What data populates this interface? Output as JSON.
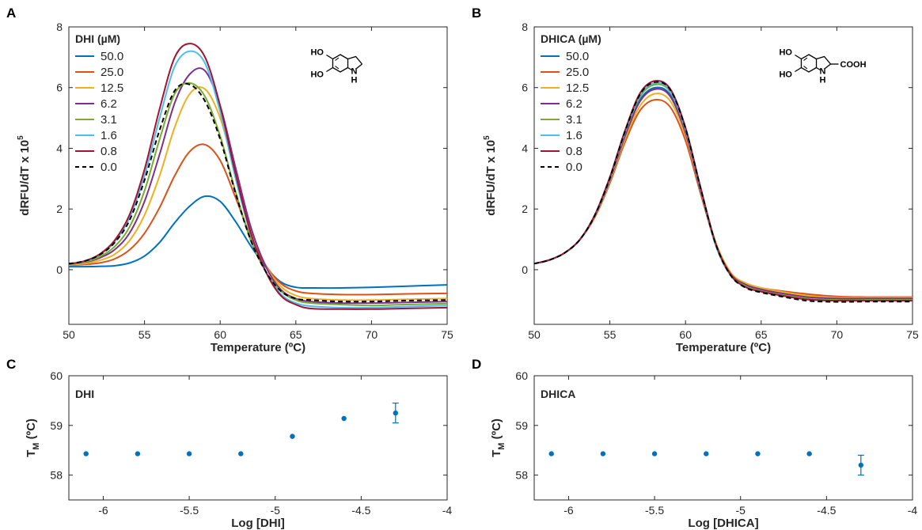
{
  "chart_data": [
    {
      "id": "A",
      "type": "line",
      "panel_label": "A",
      "xlabel": "Temperature (ºC)",
      "ylabel_main": "dRFU/dT x 10",
      "ylabel_sup": "5",
      "xlim": [
        50,
        75
      ],
      "ylim": [
        -1.8,
        8
      ],
      "xticks": [
        50,
        55,
        60,
        65,
        70,
        75
      ],
      "yticks": [
        0,
        2,
        4,
        6,
        8
      ],
      "legend_title": "DHI (µM)",
      "legend_position": "top-left",
      "structure_labels": [
        "HO",
        "HO",
        "N",
        "H"
      ],
      "x": [
        50,
        51,
        52,
        53,
        54,
        55,
        56,
        57,
        58,
        59,
        60,
        61,
        62,
        63,
        64,
        65,
        66,
        68,
        70,
        72,
        75
      ],
      "series": [
        {
          "name": "50.0",
          "color": "#0072BD",
          "dashed": false,
          "values": [
            0.1,
            0.1,
            0.11,
            0.13,
            0.22,
            0.45,
            0.9,
            1.55,
            2.1,
            2.42,
            2.25,
            1.6,
            0.8,
            0.1,
            -0.4,
            -0.58,
            -0.6,
            -0.6,
            -0.58,
            -0.55,
            -0.5
          ]
        },
        {
          "name": "25.0",
          "color": "#D95319",
          "dashed": false,
          "values": [
            0.15,
            0.17,
            0.22,
            0.35,
            0.65,
            1.2,
            2.05,
            3.1,
            3.9,
            4.12,
            3.6,
            2.4,
            1.1,
            0.15,
            -0.45,
            -0.7,
            -0.78,
            -0.82,
            -0.82,
            -0.8,
            -0.78
          ]
        },
        {
          "name": "12.5",
          "color": "#EDB120",
          "dashed": false,
          "values": [
            0.16,
            0.2,
            0.3,
            0.5,
            0.95,
            1.8,
            3.1,
            4.7,
            5.8,
            5.95,
            5.0,
            3.2,
            1.4,
            0.15,
            -0.55,
            -0.85,
            -0.95,
            -1.0,
            -1.0,
            -0.98,
            -0.95
          ]
        },
        {
          "name": "6.2",
          "color": "#7E2F8E",
          "dashed": false,
          "values": [
            0.18,
            0.24,
            0.38,
            0.65,
            1.2,
            2.25,
            3.8,
            5.5,
            6.45,
            6.55,
            5.4,
            3.4,
            1.45,
            0.12,
            -0.65,
            -0.95,
            -1.05,
            -1.1,
            -1.1,
            -1.08,
            -1.05
          ]
        },
        {
          "name": "3.1",
          "color": "#77AC30",
          "dashed": false,
          "values": [
            0.18,
            0.25,
            0.42,
            0.75,
            1.4,
            2.6,
            4.3,
            5.8,
            6.15,
            5.7,
            4.4,
            2.6,
            1.0,
            -0.05,
            -0.7,
            -1.0,
            -1.1,
            -1.15,
            -1.18,
            -1.15,
            -1.12
          ]
        },
        {
          "name": "1.6",
          "color": "#4DBEEE",
          "dashed": false,
          "values": [
            0.19,
            0.27,
            0.48,
            0.9,
            1.7,
            3.1,
            5.0,
            6.7,
            7.2,
            6.8,
            5.2,
            3.05,
            1.2,
            -0.05,
            -0.8,
            -1.1,
            -1.2,
            -1.25,
            -1.25,
            -1.22,
            -1.18
          ]
        },
        {
          "name": "0.8",
          "color": "#A2142F",
          "dashed": false,
          "values": [
            0.19,
            0.28,
            0.5,
            0.95,
            1.8,
            3.3,
            5.3,
            7.0,
            7.45,
            7.0,
            5.4,
            3.2,
            1.25,
            -0.05,
            -0.85,
            -1.15,
            -1.28,
            -1.3,
            -1.3,
            -1.28,
            -1.25
          ]
        },
        {
          "name": "0.0",
          "color": "#000000",
          "dashed": true,
          "values": [
            0.2,
            0.28,
            0.48,
            0.88,
            1.62,
            2.95,
            4.6,
            5.9,
            6.1,
            5.55,
            4.3,
            2.55,
            1.0,
            -0.05,
            -0.7,
            -0.95,
            -1.0,
            -1.05,
            -1.05,
            -1.02,
            -1.0
          ]
        }
      ]
    },
    {
      "id": "B",
      "type": "line",
      "panel_label": "B",
      "xlabel": "Temperature (ºC)",
      "ylabel_main": "dRFU/dT x 10",
      "ylabel_sup": "5",
      "xlim": [
        50,
        75
      ],
      "ylim": [
        -1.8,
        8
      ],
      "xticks": [
        50,
        55,
        60,
        65,
        70,
        75
      ],
      "yticks": [
        0,
        2,
        4,
        6,
        8
      ],
      "legend_title": "DHICA (µM)",
      "legend_position": "top-left",
      "structure_labels": [
        "HO",
        "HO",
        "COOH",
        "N",
        "H"
      ],
      "x": [
        50,
        51,
        52,
        53,
        54,
        55,
        56,
        57,
        58,
        59,
        60,
        61,
        62,
        63,
        64,
        65,
        66,
        68,
        70,
        72,
        75
      ],
      "series": [
        {
          "name": "50.0",
          "color": "#0072BD",
          "dashed": false,
          "values": [
            0.2,
            0.32,
            0.55,
            0.98,
            1.75,
            2.95,
            4.4,
            5.6,
            6.0,
            5.75,
            4.5,
            2.6,
            0.8,
            -0.2,
            -0.55,
            -0.7,
            -0.75,
            -0.85,
            -0.9,
            -0.92,
            -0.92
          ]
        },
        {
          "name": "25.0",
          "color": "#D95319",
          "dashed": false,
          "values": [
            0.2,
            0.32,
            0.55,
            0.98,
            1.72,
            2.85,
            4.2,
            5.25,
            5.6,
            5.35,
            4.25,
            2.5,
            0.85,
            -0.12,
            -0.45,
            -0.6,
            -0.68,
            -0.8,
            -0.88,
            -0.9,
            -0.9
          ]
        },
        {
          "name": "12.5",
          "color": "#EDB120",
          "dashed": false,
          "values": [
            0.2,
            0.32,
            0.55,
            0.98,
            1.74,
            2.9,
            4.3,
            5.4,
            5.8,
            5.55,
            4.4,
            2.6,
            0.9,
            -0.1,
            -0.45,
            -0.6,
            -0.7,
            -0.85,
            -0.92,
            -0.92,
            -0.92
          ]
        },
        {
          "name": "6.2",
          "color": "#7E2F8E",
          "dashed": false,
          "values": [
            0.2,
            0.32,
            0.55,
            0.98,
            1.76,
            2.95,
            4.4,
            5.55,
            5.95,
            5.7,
            4.5,
            2.6,
            0.85,
            -0.15,
            -0.5,
            -0.65,
            -0.75,
            -0.9,
            -0.95,
            -0.95,
            -0.95
          ]
        },
        {
          "name": "3.1",
          "color": "#77AC30",
          "dashed": false,
          "values": [
            0.2,
            0.32,
            0.55,
            0.98,
            1.78,
            3.0,
            4.5,
            5.7,
            6.1,
            5.85,
            4.6,
            2.65,
            0.85,
            -0.18,
            -0.55,
            -0.7,
            -0.8,
            -0.95,
            -1.0,
            -1.0,
            -1.0
          ]
        },
        {
          "name": "1.6",
          "color": "#4DBEEE",
          "dashed": false,
          "values": [
            0.2,
            0.32,
            0.55,
            0.98,
            1.78,
            3.0,
            4.52,
            5.75,
            6.15,
            5.88,
            4.6,
            2.65,
            0.82,
            -0.2,
            -0.58,
            -0.72,
            -0.82,
            -0.98,
            -1.02,
            -1.02,
            -1.02
          ]
        },
        {
          "name": "0.8",
          "color": "#A2142F",
          "dashed": false,
          "values": [
            0.2,
            0.32,
            0.55,
            0.98,
            1.8,
            3.05,
            4.58,
            5.82,
            6.22,
            5.95,
            4.68,
            2.7,
            0.85,
            -0.18,
            -0.58,
            -0.72,
            -0.82,
            -0.98,
            -1.02,
            -1.02,
            -1.02
          ]
        },
        {
          "name": "0.0",
          "color": "#000000",
          "dashed": true,
          "values": [
            0.2,
            0.32,
            0.55,
            0.98,
            1.79,
            3.02,
            4.55,
            5.78,
            6.18,
            5.92,
            4.65,
            2.68,
            0.84,
            -0.2,
            -0.6,
            -0.75,
            -0.85,
            -1.02,
            -1.06,
            -1.05,
            -1.05
          ]
        }
      ]
    },
    {
      "id": "C",
      "type": "scatter",
      "panel_label": "C",
      "inner_title": "DHI",
      "xlabel": "Log [DHI]",
      "ylabel_main": "T",
      "ylabel_sub": "M",
      "ylabel_rest": " (ºC)",
      "xlim": [
        -6.2,
        -4.0
      ],
      "ylim": [
        57.5,
        60
      ],
      "xticks": [
        -6,
        -5.5,
        -5,
        -4.5,
        -4
      ],
      "yticks": [
        58,
        59,
        60
      ],
      "color": "#0072BD",
      "x": [
        -6.1,
        -5.8,
        -5.5,
        -5.2,
        -4.9,
        -4.6,
        -4.3
      ],
      "y": [
        58.43,
        58.43,
        58.43,
        58.43,
        58.78,
        59.14,
        59.25
      ],
      "yerr": [
        0,
        0,
        0,
        0,
        0,
        0,
        0.2
      ]
    },
    {
      "id": "D",
      "type": "scatter",
      "panel_label": "D",
      "inner_title": "DHICA",
      "xlabel": "Log [DHICA]",
      "ylabel_main": "T",
      "ylabel_sub": "M",
      "ylabel_rest": " (ºC)",
      "xlim": [
        -6.2,
        -4.0
      ],
      "ylim": [
        57.5,
        60
      ],
      "xticks": [
        -6,
        -5.5,
        -5,
        -4.5,
        -4
      ],
      "yticks": [
        58,
        59,
        60
      ],
      "color": "#0072BD",
      "x": [
        -6.1,
        -5.8,
        -5.5,
        -5.2,
        -4.9,
        -4.6,
        -4.3
      ],
      "y": [
        58.43,
        58.43,
        58.43,
        58.43,
        58.43,
        58.43,
        58.2
      ],
      "yerr": [
        0,
        0,
        0,
        0,
        0,
        0,
        0.2
      ]
    }
  ]
}
